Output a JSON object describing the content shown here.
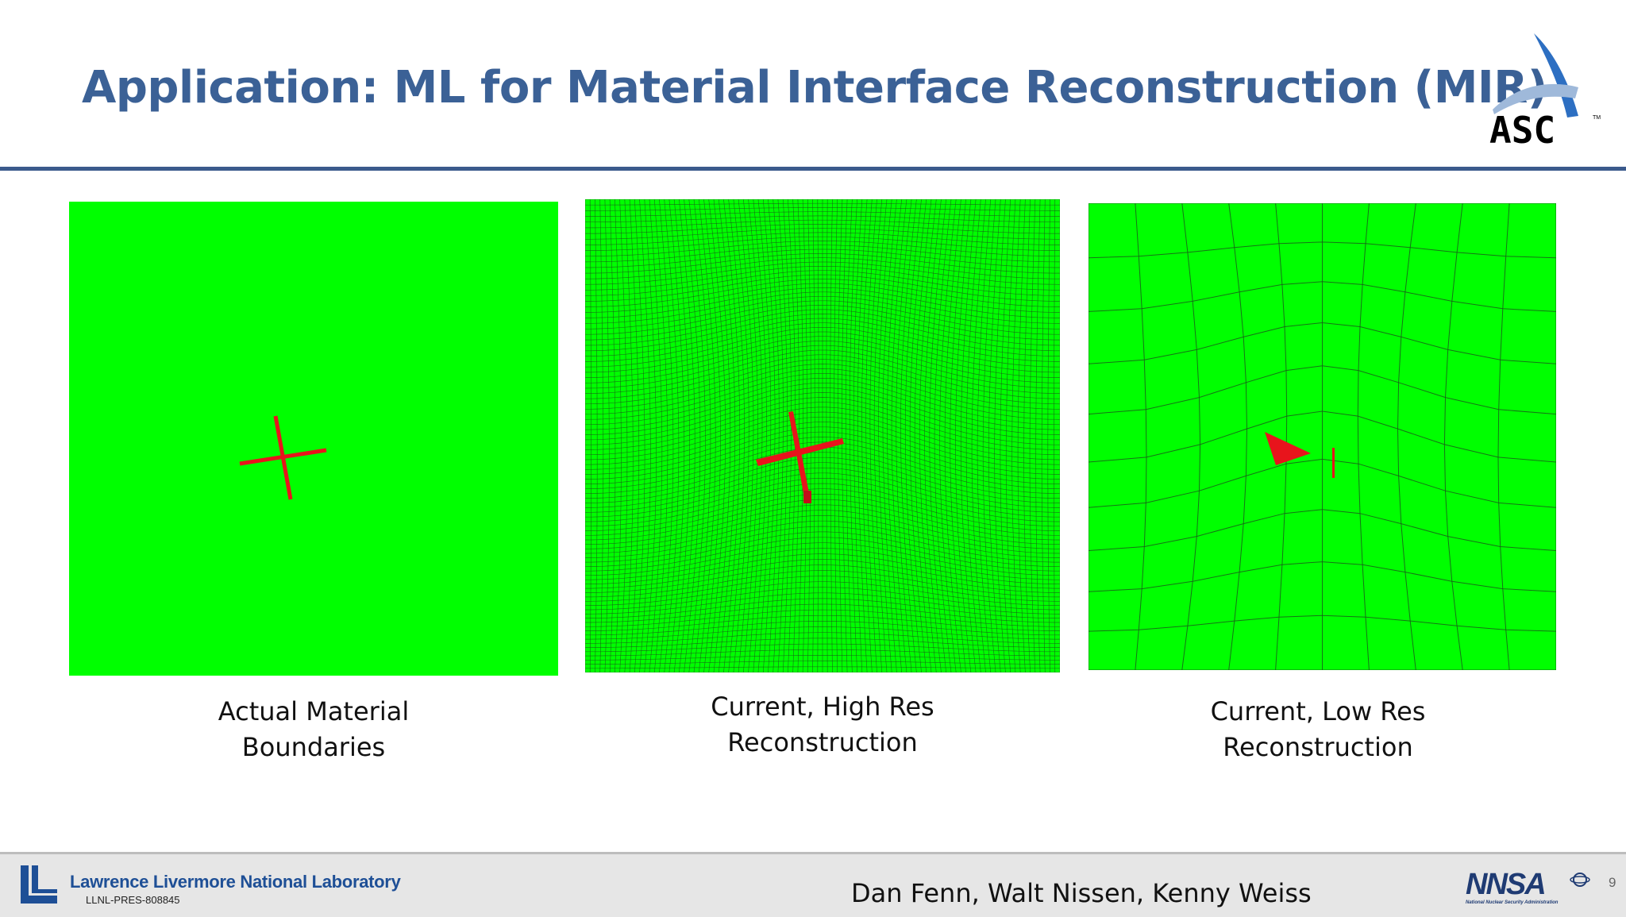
{
  "slide": {
    "title": "Application: ML for Material Interface Reconstruction (MIR)",
    "logo_text": "ASC",
    "logo_tm": "TM",
    "page_number": "9"
  },
  "panels": [
    {
      "caption_line1": "Actual Material",
      "caption_line2": "Boundaries"
    },
    {
      "caption_line1": "Current, High Res",
      "caption_line2": "Reconstruction"
    },
    {
      "caption_line1": "Current, Low Res",
      "caption_line2": "Reconstruction"
    }
  ],
  "footer": {
    "lab_name": "Lawrence Livermore National Laboratory",
    "doc_id": "LLNL-PRES-808845",
    "authors": "Dan Fenn, Walt Nissen, Kenny Weiss",
    "nnsa_text": "NNSA",
    "nnsa_subtext": "National Nuclear Security Administration"
  },
  "colors": {
    "title": "#3b6196",
    "rule": "#3b5a8c",
    "material_green": "#00ff00",
    "material_red": "#e8141c",
    "mesh_line": "#1a5c1a",
    "footer_bg": "#e6e6e6",
    "lab_blue": "#1e4f96"
  }
}
